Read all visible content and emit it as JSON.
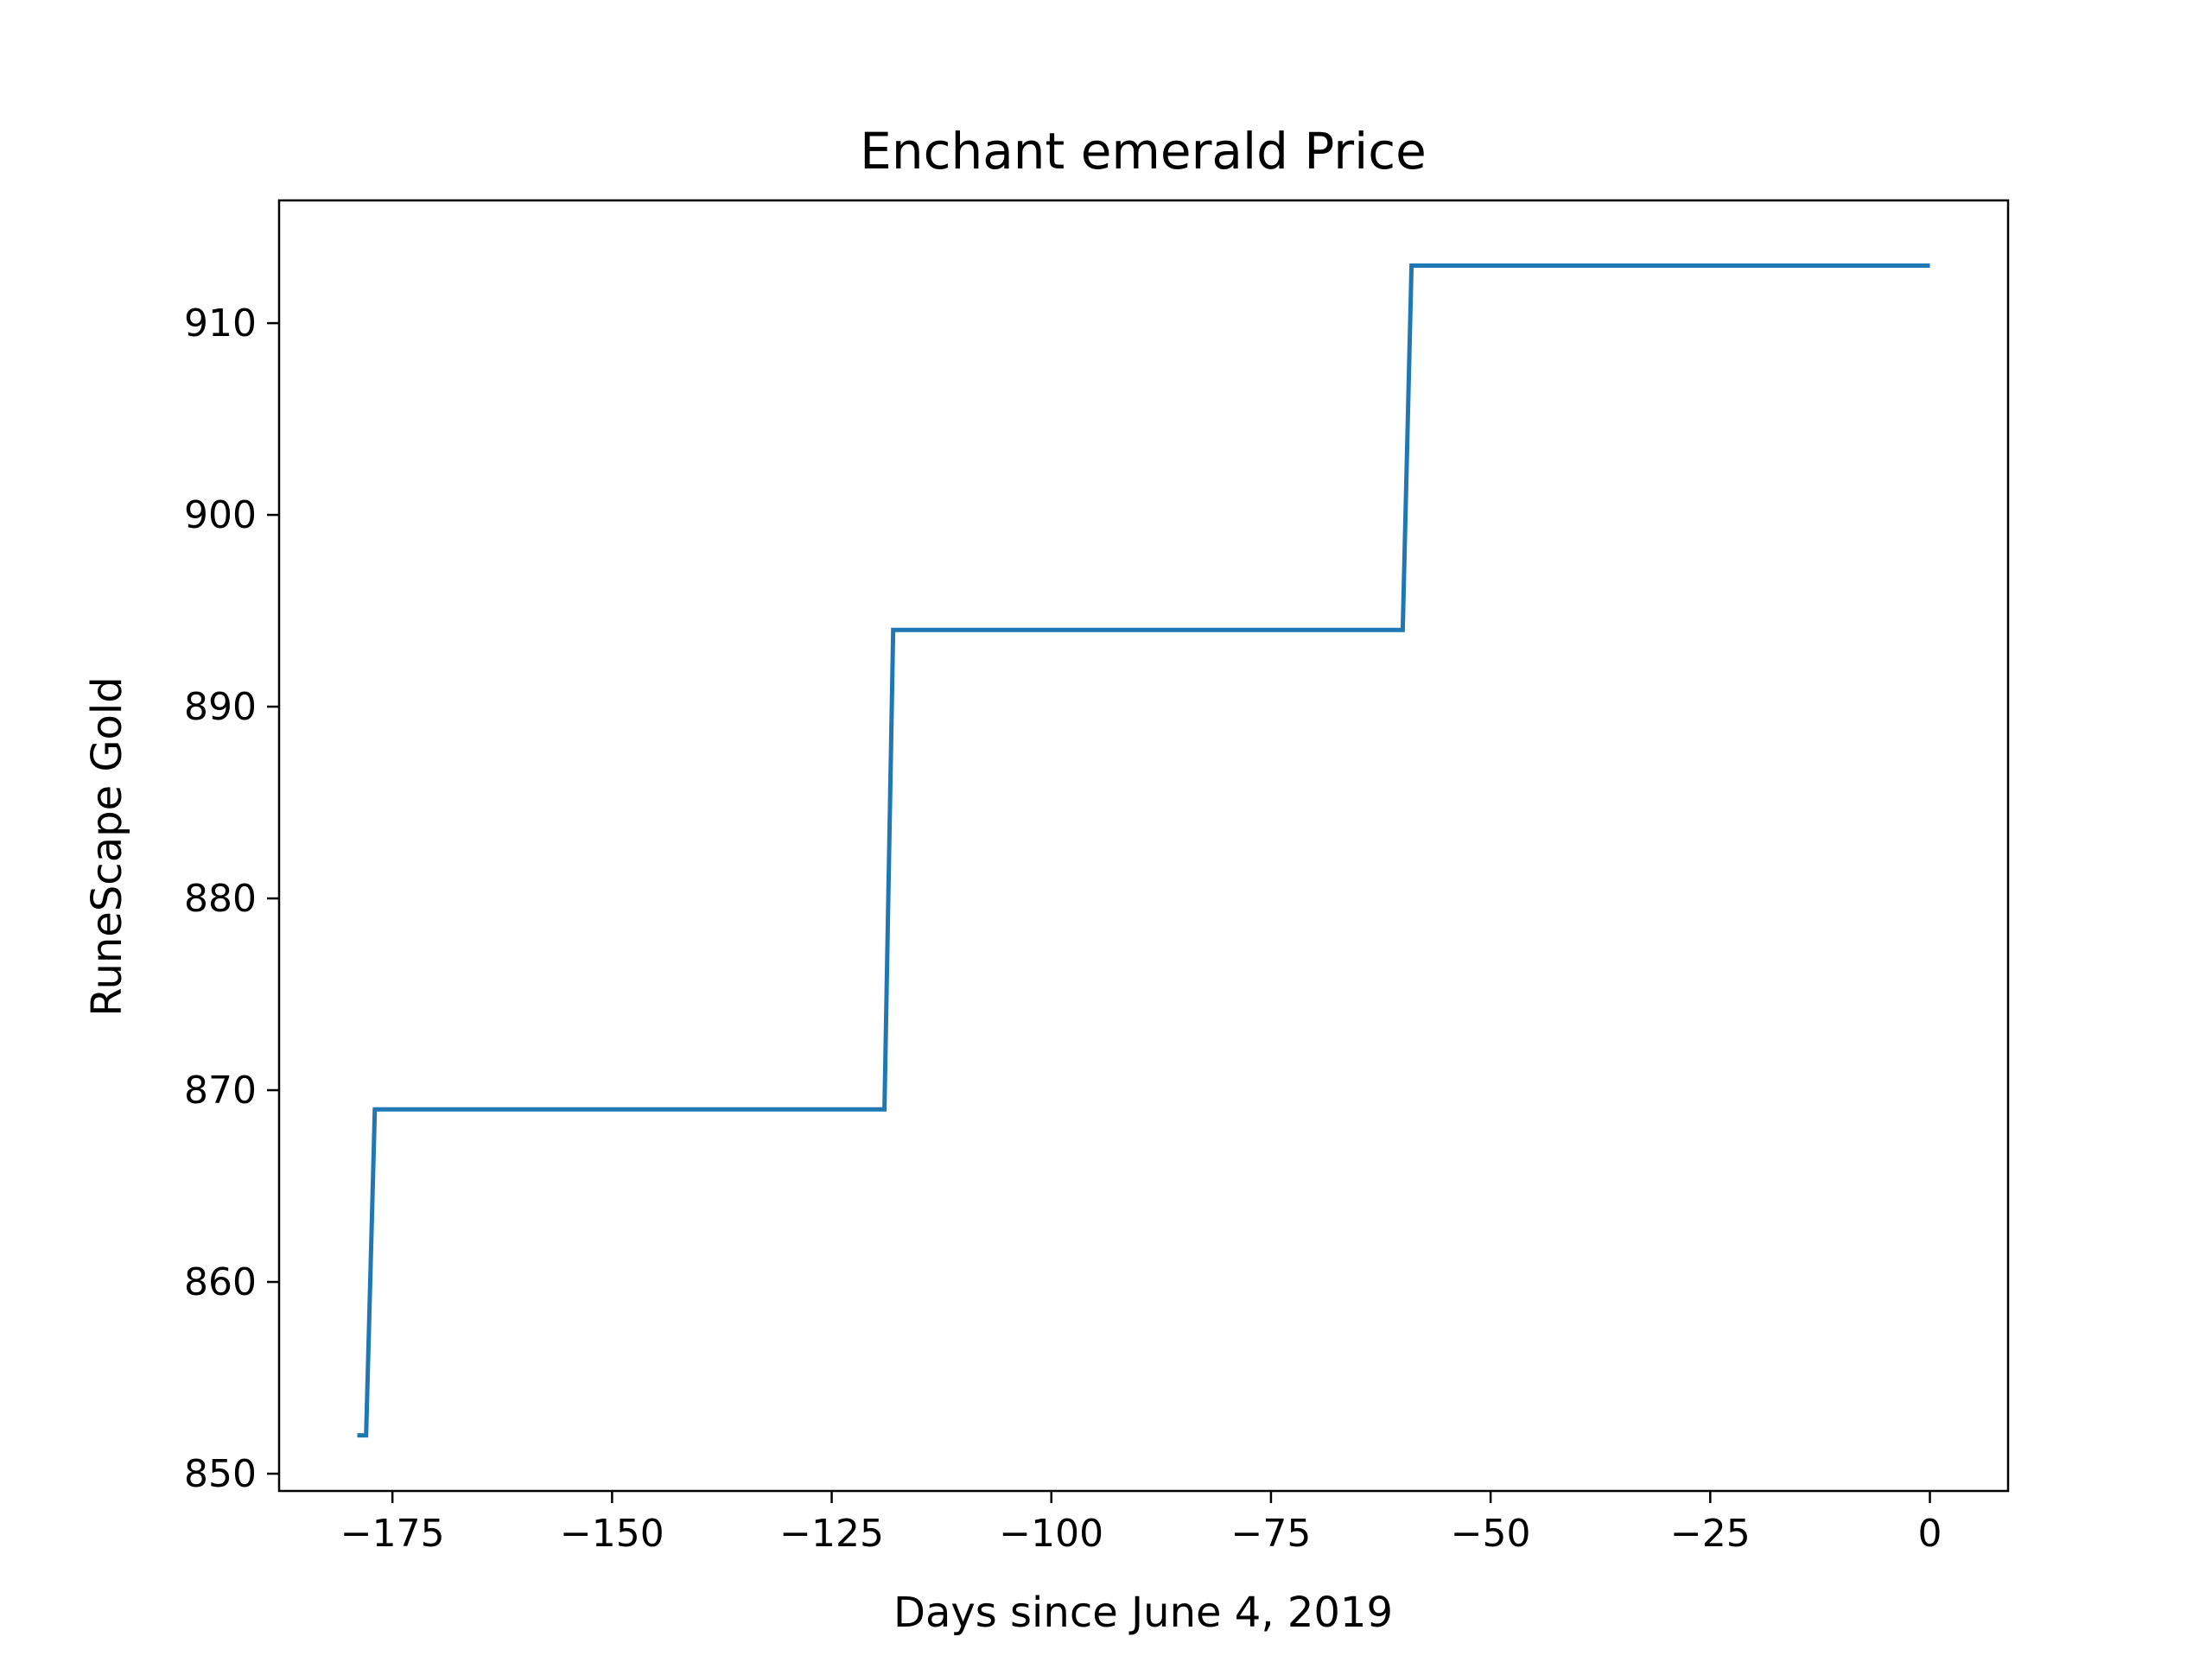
{
  "chart_data": {
    "type": "line",
    "title": "Enchant emerald Price",
    "xlabel": "Days since June 4, 2019",
    "ylabel": "RuneScape Gold",
    "xlim": [
      -187.9,
      8.9
    ],
    "ylim": [
      849.1,
      916.4
    ],
    "xticks": [
      -175,
      -150,
      -125,
      -100,
      -75,
      -50,
      -25,
      0
    ],
    "xtick_labels": [
      "−175",
      "−150",
      "−125",
      "−100",
      "−75",
      "−50",
      "−25",
      "0"
    ],
    "yticks": [
      850,
      860,
      870,
      880,
      890,
      900,
      910
    ],
    "ytick_labels": [
      "850",
      "860",
      "870",
      "880",
      "890",
      "900",
      "910"
    ],
    "grid": false,
    "series": [
      {
        "color": "#1f77b4",
        "points": [
          [
            -179,
            852
          ],
          [
            -178,
            852
          ],
          [
            -177,
            869
          ],
          [
            -119,
            869
          ],
          [
            -118,
            894
          ],
          [
            -60,
            894
          ],
          [
            -59,
            913
          ],
          [
            0,
            913
          ]
        ]
      }
    ]
  }
}
